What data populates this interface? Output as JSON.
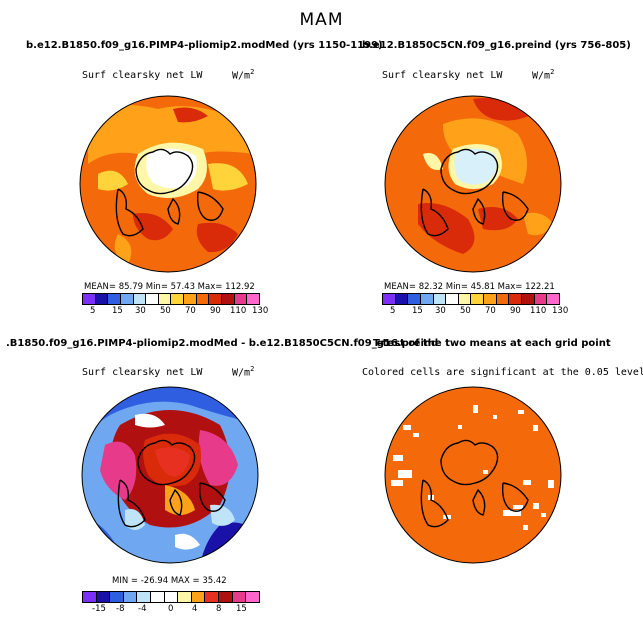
{
  "figure_title": "MAM",
  "panels": [
    {
      "title": "b.e12.B1850.f09_g16.PIMP4-pliomip2.modMed (yrs 1150-1199)",
      "variable": "Surf clearsky net LW",
      "units_base": "W/m",
      "units_exp": "2",
      "stats": "MEAN=   85.79   Min=   57.43   Max=  112.92",
      "colorbar_ticks": [
        "5",
        "15",
        "30",
        "50",
        "70",
        "90",
        "110",
        "130"
      ]
    },
    {
      "title": "b.e12.B1850C5CN.f09_g16.preind (yrs 756-805)",
      "variable": "Surf clearsky net LW",
      "units_base": "W/m",
      "units_exp": "2",
      "stats": "MEAN=   82.32   Min=   45.81   Max=  122.21",
      "colorbar_ticks": [
        "5",
        "15",
        "30",
        "50",
        "70",
        "90",
        "110",
        "130"
      ]
    },
    {
      "title": ".B1850.f09_g16.PIMP4-pliomip2.modMed - b.e12.B1850C5CN.f09_g16.preind",
      "variable": "Surf clearsky net LW",
      "units_base": "W/m",
      "units_exp": "2",
      "stats": "MIN = -26.94  MAX =   35.42",
      "colorbar_ticks": [
        "-15",
        "-8",
        "-4",
        "0",
        "4",
        "8",
        "15"
      ]
    },
    {
      "title": "T-test of the two means at each grid point",
      "variable": "Colored cells are significant at the 0.05 level"
    }
  ],
  "colors": {
    "abs_scale": [
      "#7b2ff7",
      "#1a12a8",
      "#2f5fe0",
      "#6fa8f0",
      "#bfe4f7",
      "#ffffff",
      "#fff7a8",
      "#ffd43a",
      "#ffa21a",
      "#f46a0a",
      "#d92a0a",
      "#b01010",
      "#e83a8a",
      "#ff66cc"
    ],
    "diff_scale": [
      "#7b2ff7",
      "#1a12a8",
      "#2f5fe0",
      "#6fa8f0",
      "#bfe4f7",
      "#ffffff",
      "#ffffff",
      "#fff7a8",
      "#ffa21a",
      "#e83020",
      "#b01010",
      "#e83a8a",
      "#ff66cc"
    ],
    "ttest_fill": "#f46a0a"
  }
}
